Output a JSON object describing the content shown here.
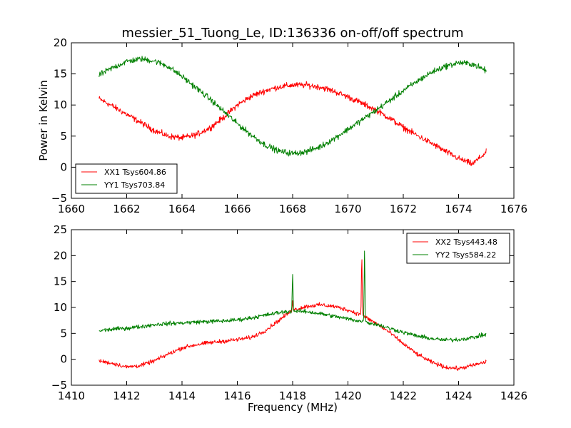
{
  "chart_data": [
    {
      "type": "line",
      "title": "messier_51_Tuong_Le, ID:136336 on-off/off spectrum",
      "xlabel": "",
      "ylabel": "Power in Kelvin",
      "xlim": [
        1660,
        1676
      ],
      "ylim": [
        -5,
        20
      ],
      "xticks": [
        "1660",
        "1662",
        "1664",
        "1666",
        "1668",
        "1670",
        "1672",
        "1674",
        "1676"
      ],
      "yticks": [
        "−5",
        "0",
        "5",
        "10",
        "15",
        "20"
      ],
      "legend": "lower-left",
      "series": [
        {
          "name": "XX1 Tsys604.86",
          "color": "#ff0000",
          "x": [
            1661.0,
            1661.5,
            1662.0,
            1662.5,
            1663.0,
            1663.5,
            1664.0,
            1664.5,
            1665.0,
            1665.5,
            1666.0,
            1666.5,
            1667.0,
            1667.5,
            1668.0,
            1668.5,
            1669.0,
            1669.5,
            1670.0,
            1670.5,
            1671.0,
            1671.5,
            1672.0,
            1672.5,
            1673.0,
            1673.5,
            1674.0,
            1674.5,
            1675.0
          ],
          "y": [
            11.0,
            9.8,
            8.5,
            7.2,
            5.9,
            5.0,
            4.7,
            5.2,
            6.3,
            8.0,
            10.0,
            11.4,
            12.3,
            12.9,
            13.2,
            13.2,
            12.9,
            12.2,
            11.3,
            10.3,
            9.2,
            7.9,
            6.4,
            5.1,
            3.9,
            2.6,
            1.4,
            0.5,
            2.4
          ],
          "noise": 0.55
        },
        {
          "name": "YY1 Tsys703.84",
          "color": "#008000",
          "x": [
            1661.0,
            1661.5,
            1662.0,
            1662.5,
            1663.0,
            1663.5,
            1664.0,
            1664.5,
            1665.0,
            1665.5,
            1666.0,
            1666.5,
            1667.0,
            1667.5,
            1668.0,
            1668.5,
            1669.0,
            1669.5,
            1670.0,
            1670.5,
            1671.0,
            1671.5,
            1672.0,
            1672.5,
            1673.0,
            1673.5,
            1674.0,
            1674.5,
            1675.0
          ],
          "y": [
            14.8,
            16.0,
            17.0,
            17.4,
            17.1,
            16.2,
            14.6,
            12.8,
            11.0,
            9.0,
            7.0,
            5.2,
            3.6,
            2.6,
            2.2,
            2.5,
            3.3,
            4.6,
            6.1,
            7.6,
            9.1,
            10.7,
            12.3,
            13.8,
            15.2,
            16.2,
            16.8,
            16.6,
            15.5
          ],
          "noise": 0.55
        }
      ]
    },
    {
      "type": "line",
      "title": "",
      "xlabel": "Frequency (MHz)",
      "ylabel": "",
      "xlim": [
        1410,
        1426
      ],
      "ylim": [
        -5,
        25
      ],
      "xticks": [
        "1410",
        "1412",
        "1414",
        "1416",
        "1418",
        "1420",
        "1422",
        "1424",
        "1426"
      ],
      "yticks": [
        "−5",
        "0",
        "5",
        "10",
        "15",
        "20",
        "25"
      ],
      "legend": "top-right",
      "series": [
        {
          "name": "XX2 Tsys443.48",
          "color": "#ff0000",
          "x": [
            1411.0,
            1411.5,
            1412.0,
            1412.5,
            1413.0,
            1413.5,
            1414.0,
            1414.5,
            1415.0,
            1415.5,
            1416.0,
            1416.5,
            1417.0,
            1417.5,
            1418.0,
            1418.5,
            1419.0,
            1419.5,
            1420.0,
            1420.5,
            1421.0,
            1421.5,
            1422.0,
            1422.5,
            1423.0,
            1423.5,
            1424.0,
            1424.5,
            1425.0
          ],
          "y": [
            -0.3,
            -0.8,
            -1.5,
            -1.2,
            -0.3,
            1.0,
            2.2,
            2.8,
            3.2,
            3.5,
            3.8,
            4.2,
            5.5,
            7.5,
            9.5,
            10.2,
            10.5,
            10.2,
            9.5,
            8.5,
            7.0,
            5.2,
            3.0,
            1.0,
            -0.5,
            -1.5,
            -1.8,
            -1.2,
            -0.5
          ],
          "noise": 0.45,
          "peaks": [
            [
              1418.0,
              11.5
            ],
            [
              1420.5,
              20.0
            ]
          ]
        },
        {
          "name": "YY2 Tsys584.22",
          "color": "#008000",
          "x": [
            1411.0,
            1411.5,
            1412.0,
            1412.5,
            1413.0,
            1413.5,
            1414.0,
            1414.5,
            1415.0,
            1415.5,
            1416.0,
            1416.5,
            1417.0,
            1417.5,
            1418.0,
            1418.5,
            1419.0,
            1419.5,
            1420.0,
            1420.5,
            1421.0,
            1421.5,
            1422.0,
            1422.5,
            1423.0,
            1423.5,
            1424.0,
            1424.5,
            1425.0
          ],
          "y": [
            5.5,
            5.8,
            6.0,
            6.3,
            6.7,
            6.9,
            7.0,
            7.2,
            7.3,
            7.4,
            7.6,
            8.0,
            8.5,
            9.0,
            9.3,
            9.2,
            8.8,
            8.3,
            7.8,
            7.3,
            6.8,
            6.0,
            5.2,
            4.5,
            4.0,
            3.7,
            3.8,
            4.2,
            4.8
          ],
          "noise": 0.45,
          "peaks": [
            [
              1418.0,
              16.6
            ],
            [
              1420.6,
              21.4
            ]
          ]
        }
      ]
    }
  ]
}
